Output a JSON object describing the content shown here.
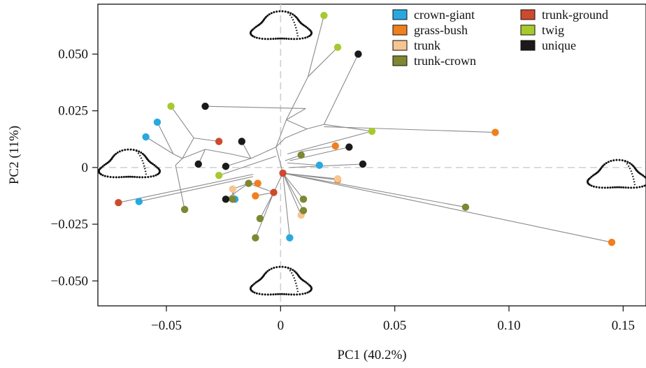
{
  "chart_data": {
    "type": "scatter",
    "title": "",
    "xlabel": "PC1 (40.2%)",
    "ylabel": "PC2 (11%)",
    "xlim": [
      -0.08,
      0.16
    ],
    "ylim": [
      -0.061,
      0.072
    ],
    "x_ticks": [
      {
        "value": -0.05,
        "label": "−0.05"
      },
      {
        "value": 0,
        "label": "0"
      },
      {
        "value": 0.05,
        "label": "0.05"
      },
      {
        "value": 0.1,
        "label": "0.10"
      },
      {
        "value": 0.15,
        "label": "0.15"
      }
    ],
    "y_ticks": [
      {
        "value": 0.05,
        "label": "0.050"
      },
      {
        "value": 0.025,
        "label": "0.025"
      },
      {
        "value": 0,
        "label": "0"
      },
      {
        "value": -0.025,
        "label": "−0.025"
      },
      {
        "value": -0.05,
        "label": "−0.050"
      }
    ],
    "grid": false,
    "reference_lines": "dashed lines at x = 0 and y = 0",
    "legend_position": "top-right",
    "legend": [
      {
        "name": "crown-giant",
        "color": "#29a8e0"
      },
      {
        "name": "grass-bush",
        "color": "#f07f1e"
      },
      {
        "name": "trunk",
        "color": "#f6c592"
      },
      {
        "name": "trunk-crown",
        "color": "#7e8731"
      },
      {
        "name": "trunk-ground",
        "color": "#cd4a2e"
      },
      {
        "name": "twig",
        "color": "#a6c92e"
      },
      {
        "name": "unique",
        "color": "#1a1a1a"
      }
    ],
    "series": [
      {
        "name": "crown-giant",
        "color": "#29a8e0",
        "points": [
          [
            -0.054,
            0.02
          ],
          [
            -0.059,
            0.0135
          ],
          [
            -0.062,
            -0.015
          ],
          [
            -0.02,
            -0.014
          ],
          [
            0.017,
            0.001
          ],
          [
            0.004,
            -0.031
          ]
        ]
      },
      {
        "name": "grass-bush",
        "color": "#f07f1e",
        "points": [
          [
            0.094,
            0.0155
          ],
          [
            0.145,
            -0.033
          ],
          [
            0.024,
            0.0095
          ],
          [
            0.025,
            -0.0055
          ],
          [
            -0.01,
            -0.007
          ],
          [
            -0.011,
            -0.0125
          ]
        ]
      },
      {
        "name": "trunk",
        "color": "#f6c592",
        "points": [
          [
            -0.021,
            -0.0095
          ],
          [
            0.009,
            -0.021
          ],
          [
            0.025,
            -0.005
          ]
        ]
      },
      {
        "name": "trunk-crown",
        "color": "#7e8731",
        "points": [
          [
            -0.042,
            -0.0185
          ],
          [
            -0.014,
            -0.007
          ],
          [
            -0.021,
            -0.014
          ],
          [
            -0.009,
            -0.0225
          ],
          [
            -0.011,
            -0.031
          ],
          [
            0.009,
            0.0055
          ],
          [
            0.01,
            -0.014
          ],
          [
            0.01,
            -0.019
          ],
          [
            0.081,
            -0.0175
          ]
        ]
      },
      {
        "name": "trunk-ground",
        "color": "#cd4a2e",
        "points": [
          [
            -0.071,
            -0.0155
          ],
          [
            -0.027,
            0.0115
          ],
          [
            0.001,
            -0.0025
          ],
          [
            -0.003,
            -0.011
          ]
        ]
      },
      {
        "name": "twig",
        "color": "#a6c92e",
        "points": [
          [
            -0.048,
            0.027
          ],
          [
            0.019,
            0.067
          ],
          [
            0.025,
            0.053
          ],
          [
            0.04,
            0.016
          ],
          [
            -0.027,
            -0.0035
          ]
        ]
      },
      {
        "name": "unique",
        "color": "#1a1a1a",
        "points": [
          [
            -0.033,
            0.027
          ],
          [
            -0.017,
            0.0115
          ],
          [
            -0.036,
            0.0015
          ],
          [
            -0.024,
            0.0005
          ],
          [
            -0.024,
            -0.014
          ],
          [
            0.034,
            0.05
          ],
          [
            0.03,
            0.009
          ],
          [
            0.036,
            0.0015
          ]
        ]
      }
    ],
    "tree_edges": [
      [
        [
          0.019,
          0.067
        ],
        [
          0.012,
          0.04
        ]
      ],
      [
        [
          0.025,
          0.053
        ],
        [
          0.012,
          0.04
        ]
      ],
      [
        [
          0.012,
          0.04
        ],
        [
          0.0025,
          0.021
        ]
      ],
      [
        [
          0.034,
          0.05
        ],
        [
          0.019,
          0.019
        ]
      ],
      [
        [
          0.019,
          0.019
        ],
        [
          0.04,
          0.016
        ]
      ],
      [
        [
          0.019,
          0.019
        ],
        [
          0.0115,
          0.017
        ]
      ],
      [
        [
          0.0115,
          0.017
        ],
        [
          0.0025,
          0.021
        ]
      ],
      [
        [
          0.0115,
          0.017
        ],
        [
          0.002,
          0.013
        ]
      ],
      [
        [
          0.094,
          0.0155
        ],
        [
          0.019,
          0.018
        ]
      ],
      [
        [
          -0.033,
          0.027
        ],
        [
          0.011,
          0.026
        ]
      ],
      [
        [
          0.011,
          0.026
        ],
        [
          0.0025,
          0.021
        ]
      ],
      [
        [
          0.0025,
          0.021
        ],
        [
          -0.002,
          0.009
        ]
      ],
      [
        [
          0.002,
          0.013
        ],
        [
          -0.002,
          0.009
        ]
      ],
      [
        [
          -0.048,
          0.027
        ],
        [
          -0.038,
          0.013
        ]
      ],
      [
        [
          -0.038,
          0.013
        ],
        [
          -0.027,
          0.0115
        ]
      ],
      [
        [
          -0.038,
          0.013
        ],
        [
          -0.043,
          0.004
        ]
      ],
      [
        [
          -0.054,
          0.02
        ],
        [
          -0.047,
          0.006
        ]
      ],
      [
        [
          -0.047,
          0.006
        ],
        [
          -0.043,
          0.004
        ]
      ],
      [
        [
          -0.059,
          0.0135
        ],
        [
          -0.047,
          0.006
        ]
      ],
      [
        [
          -0.043,
          0.004
        ],
        [
          -0.033,
          0.008
        ]
      ],
      [
        [
          -0.036,
          0.0015
        ],
        [
          -0.033,
          0.008
        ]
      ],
      [
        [
          -0.033,
          0.008
        ],
        [
          -0.022,
          0.006
        ]
      ],
      [
        [
          -0.017,
          0.0115
        ],
        [
          -0.013,
          0.004
        ]
      ],
      [
        [
          -0.024,
          0.0005
        ],
        [
          -0.013,
          0.004
        ]
      ],
      [
        [
          -0.022,
          0.006
        ],
        [
          -0.013,
          0.004
        ]
      ],
      [
        [
          -0.013,
          0.004
        ],
        [
          -0.002,
          0.009
        ]
      ],
      [
        [
          -0.027,
          -0.0035
        ],
        [
          -0.002,
          0.005
        ]
      ],
      [
        [
          -0.042,
          -0.0185
        ],
        [
          -0.046,
          0.001
        ]
      ],
      [
        [
          -0.046,
          0.001
        ],
        [
          -0.043,
          0.004
        ]
      ],
      [
        [
          -0.071,
          -0.0155
        ],
        [
          -0.012,
          -0.003
        ]
      ],
      [
        [
          -0.062,
          -0.015
        ],
        [
          -0.012,
          -0.004
        ]
      ],
      [
        [
          0.024,
          0.0095
        ],
        [
          0.009,
          0.007
        ]
      ],
      [
        [
          0.009,
          0.0055
        ],
        [
          0.002,
          0.003
        ]
      ],
      [
        [
          0.03,
          0.009
        ],
        [
          0.004,
          0.003
        ]
      ],
      [
        [
          0.017,
          0.001
        ],
        [
          0.003,
          0.002
        ]
      ],
      [
        [
          0.036,
          0.0015
        ],
        [
          0.004,
          0.0
        ]
      ],
      [
        [
          0.04,
          0.016
        ],
        [
          0.003,
          0.006
        ]
      ],
      [
        [
          -0.002,
          0.009
        ],
        [
          0.001,
          -0.0025
        ]
      ],
      [
        [
          0.001,
          -0.0025
        ],
        [
          0.025,
          -0.005
        ]
      ],
      [
        [
          0.001,
          -0.0025
        ],
        [
          0.025,
          -0.0055
        ]
      ],
      [
        [
          0.001,
          -0.0025
        ],
        [
          0.081,
          -0.0175
        ]
      ],
      [
        [
          0.001,
          -0.0025
        ],
        [
          0.145,
          -0.033
        ]
      ],
      [
        [
          0.001,
          -0.0025
        ],
        [
          0.009,
          -0.021
        ]
      ],
      [
        [
          0.001,
          -0.0025
        ],
        [
          0.004,
          -0.031
        ]
      ],
      [
        [
          0.001,
          -0.0025
        ],
        [
          0.01,
          -0.014
        ]
      ],
      [
        [
          0.001,
          -0.0025
        ],
        [
          0.01,
          -0.019
        ]
      ],
      [
        [
          0.001,
          -0.0025
        ],
        [
          -0.003,
          -0.011
        ]
      ],
      [
        [
          -0.003,
          -0.011
        ],
        [
          -0.011,
          -0.0125
        ]
      ],
      [
        [
          -0.003,
          -0.011
        ],
        [
          -0.009,
          -0.0225
        ]
      ],
      [
        [
          -0.003,
          -0.011
        ],
        [
          -0.011,
          -0.031
        ]
      ],
      [
        [
          -0.003,
          -0.011
        ],
        [
          -0.014,
          -0.007
        ]
      ],
      [
        [
          -0.014,
          -0.007
        ],
        [
          -0.01,
          -0.007
        ]
      ],
      [
        [
          -0.014,
          -0.007
        ],
        [
          -0.021,
          -0.0095
        ]
      ],
      [
        [
          -0.021,
          -0.0095
        ],
        [
          -0.021,
          -0.014
        ]
      ],
      [
        [
          -0.021,
          -0.0095
        ],
        [
          -0.02,
          -0.014
        ]
      ],
      [
        [
          -0.014,
          -0.007
        ],
        [
          -0.024,
          -0.014
        ]
      ]
    ],
    "shape_outlines": [
      "top",
      "left",
      "right",
      "bottom"
    ]
  }
}
